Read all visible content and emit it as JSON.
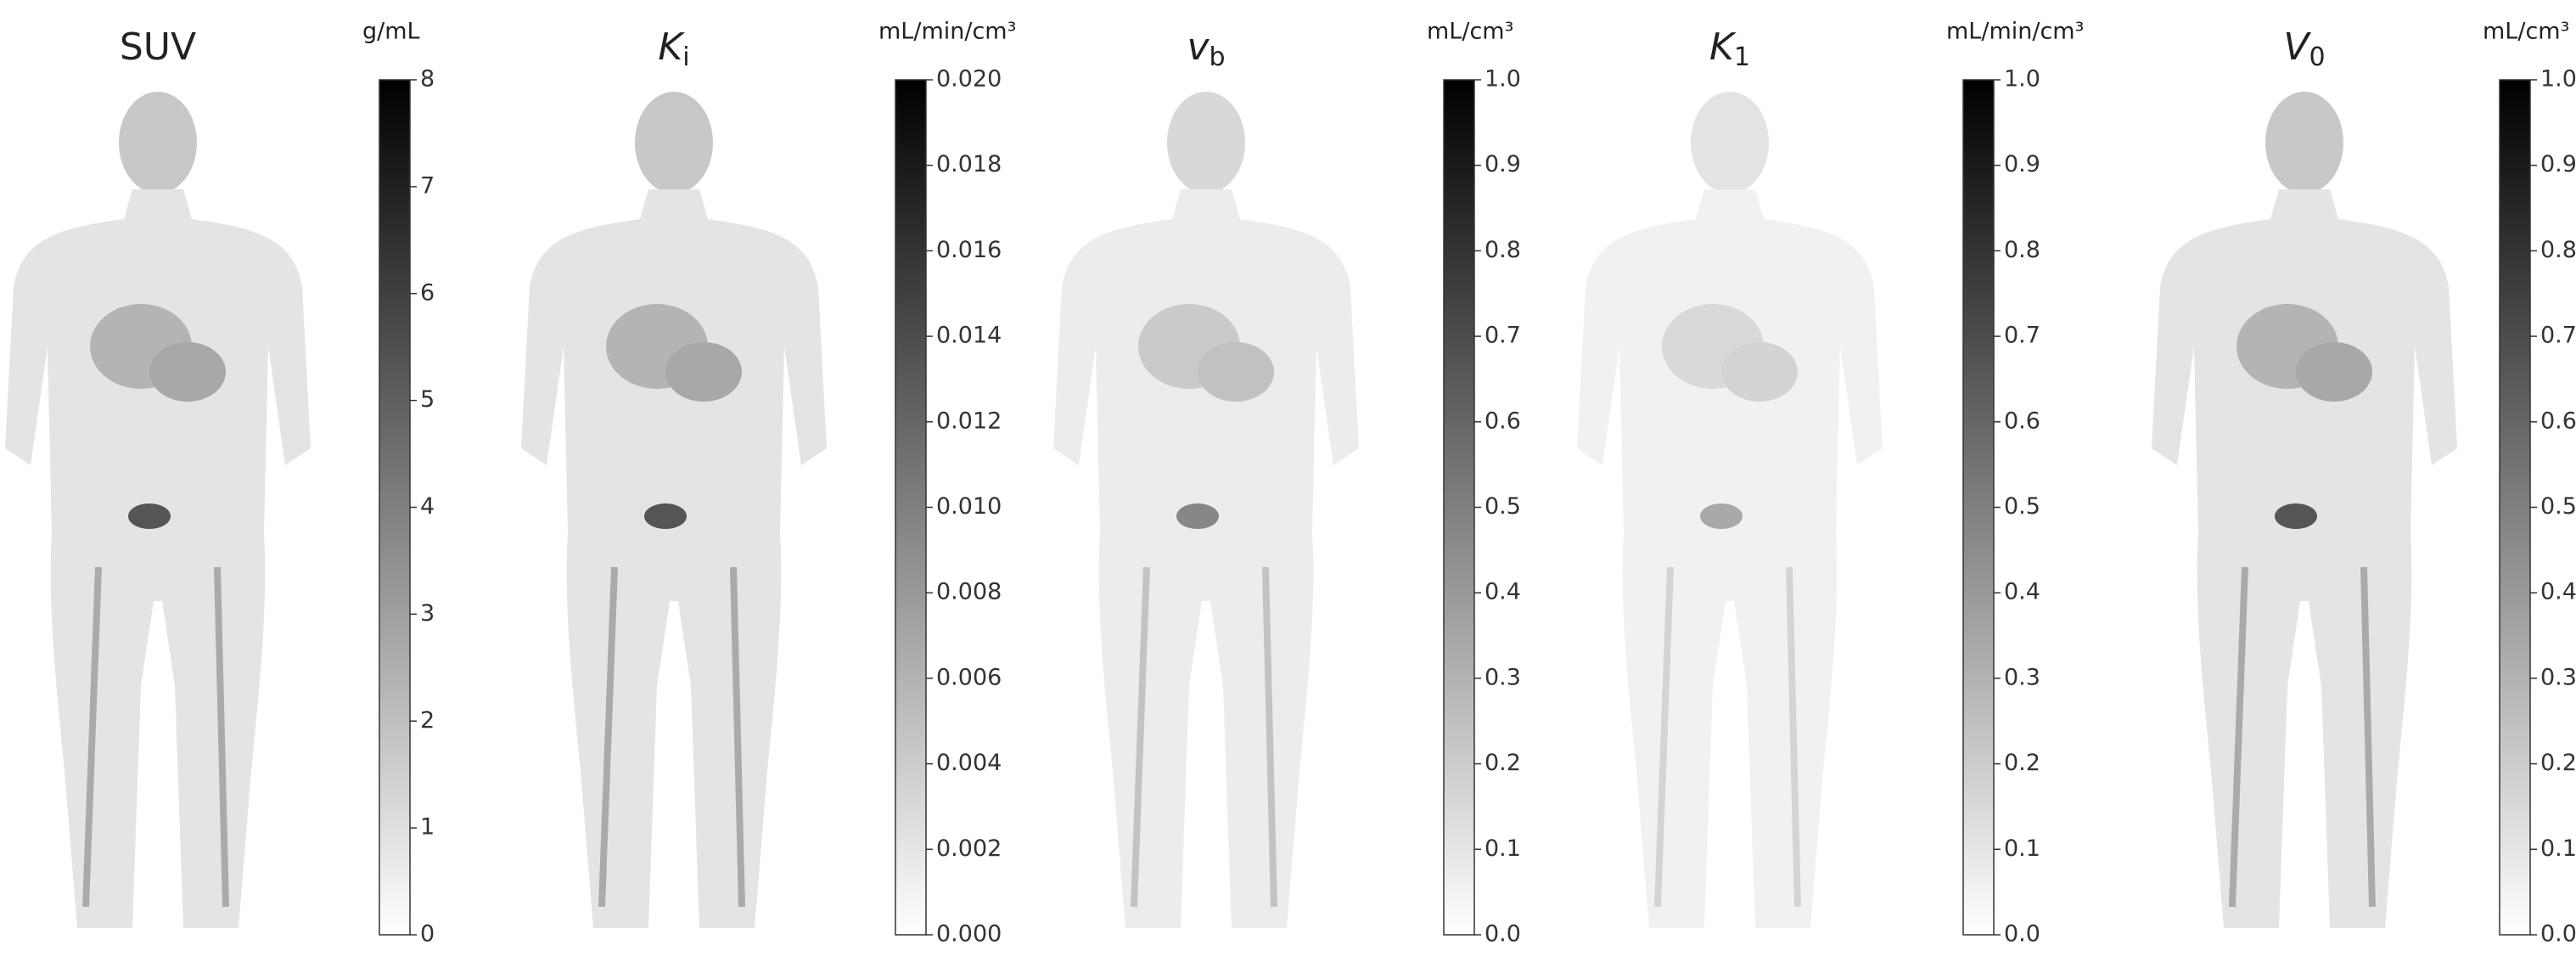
{
  "chart_data": [
    {
      "type": "colorbar",
      "title": "SUV",
      "unit": "g/mL",
      "colormap": [
        "#ffffff",
        "#000000"
      ],
      "ylim": [
        0,
        8
      ],
      "yticks": [
        0,
        1,
        2,
        3,
        4,
        5,
        6,
        7,
        8
      ]
    },
    {
      "type": "colorbar",
      "title": "K",
      "title_subscript": "i",
      "unit": "mL/min/cm³",
      "colormap": [
        "#ffffff",
        "#000000"
      ],
      "ylim": [
        0,
        0.02
      ],
      "yticks": [
        {
          "value": 0,
          "label": "0.000"
        },
        0.002,
        0.004,
        0.006,
        0.008,
        {
          "value": 0.01,
          "label": "0.010"
        },
        0.012,
        0.014,
        0.016,
        0.018,
        {
          "value": 0.02,
          "label": "0.020"
        }
      ]
    },
    {
      "type": "colorbar",
      "title": "v",
      "title_subscript": "b",
      "unit": "mL/cm³",
      "colormap": [
        "#ffffff",
        "#000000"
      ],
      "ylim": [
        0,
        1
      ],
      "yticks": [
        {
          "value": 0,
          "label": "0.0"
        },
        0.1,
        0.2,
        0.3,
        0.4,
        0.5,
        0.6,
        0.7,
        0.8,
        0.9,
        {
          "value": 1,
          "label": "1.0"
        }
      ]
    },
    {
      "type": "colorbar",
      "title": "K",
      "title_subscript": "1",
      "unit": "mL/min/cm³",
      "colormap": [
        "#ffffff",
        "#000000"
      ],
      "ylim": [
        0,
        1
      ],
      "yticks": [
        {
          "value": 0,
          "label": "0.0"
        },
        0.1,
        0.2,
        0.3,
        0.4,
        0.5,
        0.6,
        0.7,
        0.8,
        0.9,
        {
          "value": 1,
          "label": "1.0"
        }
      ]
    },
    {
      "type": "colorbar",
      "title": "V",
      "title_subscript": "0",
      "unit": "mL/cm³",
      "colormap": [
        "#ffffff",
        "#000000"
      ],
      "ylim": [
        0,
        1
      ],
      "yticks": [
        {
          "value": 0,
          "label": "0.0"
        },
        0.1,
        0.2,
        0.3,
        0.4,
        0.5,
        0.6,
        0.7,
        0.8,
        0.9,
        {
          "value": 1,
          "label": "1.0"
        }
      ]
    }
  ]
}
